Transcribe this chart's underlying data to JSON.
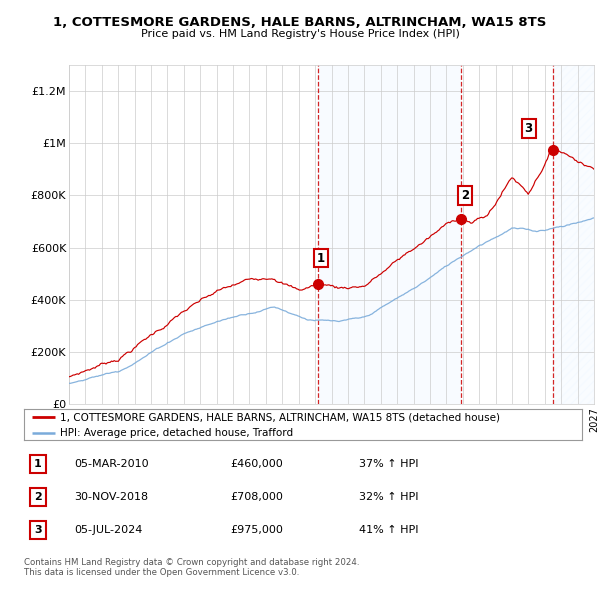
{
  "title": "1, COTTESMORE GARDENS, HALE BARNS, ALTRINCHAM, WA15 8TS",
  "subtitle": "Price paid vs. HM Land Registry's House Price Index (HPI)",
  "ylim": [
    0,
    1300000
  ],
  "yticks": [
    0,
    200000,
    400000,
    600000,
    800000,
    1000000,
    1200000
  ],
  "ytick_labels": [
    "£0",
    "£200K",
    "£400K",
    "£600K",
    "£800K",
    "£1M",
    "£1.2M"
  ],
  "x_start_year": 1995,
  "x_end_year": 2027,
  "sales": [
    {
      "date": 2010.17,
      "price": 460000,
      "label": "1"
    },
    {
      "date": 2018.92,
      "price": 708000,
      "label": "2"
    },
    {
      "date": 2024.51,
      "price": 975000,
      "label": "3"
    }
  ],
  "sale_table": [
    {
      "num": "1",
      "date": "05-MAR-2010",
      "price": "£460,000",
      "change": "37% ↑ HPI"
    },
    {
      "num": "2",
      "date": "30-NOV-2018",
      "price": "£708,000",
      "change": "32% ↑ HPI"
    },
    {
      "num": "3",
      "date": "05-JUL-2024",
      "price": "£975,000",
      "change": "41% ↑ HPI"
    }
  ],
  "legend_red": "1, COTTESMORE GARDENS, HALE BARNS, ALTRINCHAM, WA15 8TS (detached house)",
  "legend_blue": "HPI: Average price, detached house, Trafford",
  "footer": "Contains HM Land Registry data © Crown copyright and database right 2024.\nThis data is licensed under the Open Government Licence v3.0.",
  "red_color": "#cc0000",
  "blue_color": "#7aabda",
  "dashed_color": "#cc0000",
  "background_color": "#ffffff",
  "grid_color": "#cccccc",
  "shaded_color": "#ddeeff"
}
